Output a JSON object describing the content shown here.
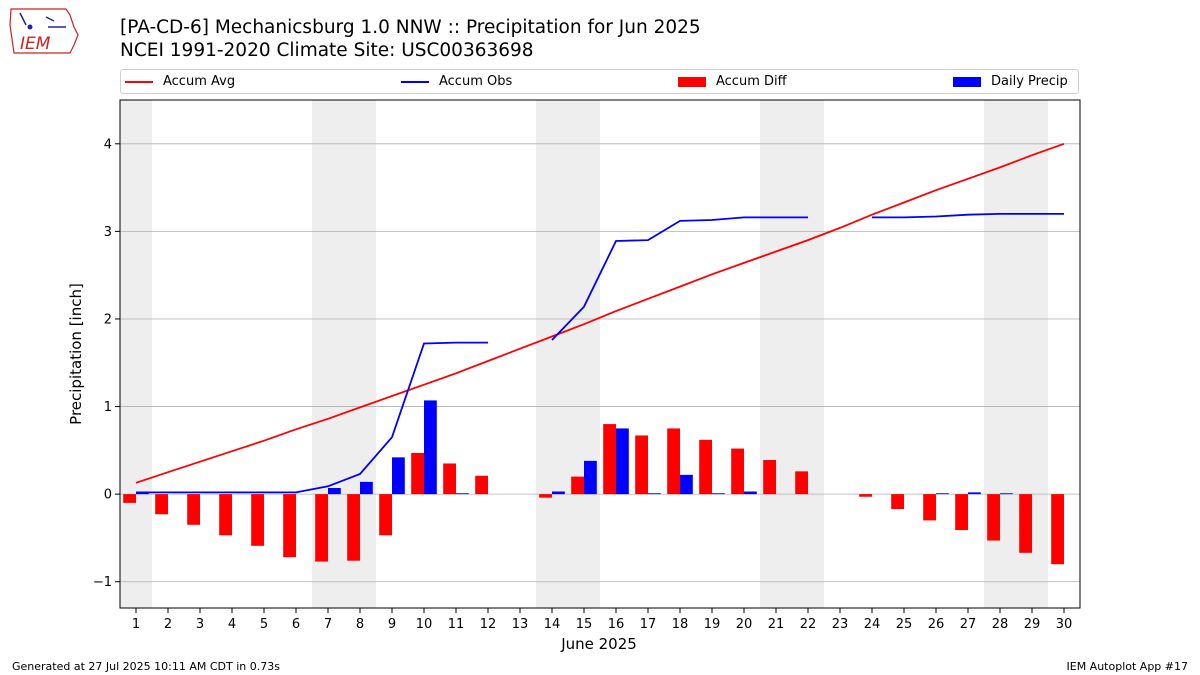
{
  "header": {
    "title_line1": "[PA-CD-6] Mechanicsburg 1.0 NNW :: Precipitation for Jun 2025",
    "title_line2": "NCEI 1991-2020 Climate Site: USC00363698"
  },
  "logo": {
    "text": "IEM",
    "color": "#cc2222"
  },
  "footer": {
    "generated": "Generated at 27 Jul 2025 10:11 AM CDT in 0.73s",
    "app": "IEM Autoplot App #17"
  },
  "legend": {
    "avg_label": "Accum Avg",
    "obs_label": "Accum Obs",
    "diff_label": "Accum Diff",
    "daily_label": "Daily Precip"
  },
  "chart_data": {
    "type": "bar",
    "xlabel": "June 2025",
    "ylabel": "Precipitation [inch]",
    "xlim": [
      0.5,
      30.5
    ],
    "ylim": [
      -1.3,
      4.5
    ],
    "yticks": [
      -1,
      0,
      1,
      2,
      3,
      4
    ],
    "ytick_labels": [
      "−1",
      "0",
      "1",
      "2",
      "3",
      "4"
    ],
    "grid": "horizontal",
    "legend_position": "top",
    "weekend_shading": [
      [
        0.5,
        1.5
      ],
      [
        6.5,
        8.5
      ],
      [
        13.5,
        15.5
      ],
      [
        20.5,
        22.5
      ],
      [
        27.5,
        29.5
      ]
    ],
    "days": [
      1,
      2,
      3,
      4,
      5,
      6,
      7,
      8,
      9,
      10,
      11,
      12,
      13,
      14,
      15,
      16,
      17,
      18,
      19,
      20,
      21,
      22,
      23,
      24,
      25,
      26,
      27,
      28,
      29,
      30
    ],
    "colors": {
      "avg": "#ff0000",
      "obs": "#0000ff",
      "diff": "#ff0000",
      "daily": "#0000ff",
      "shade": "#eeeeee",
      "grid": "#b0b0b0"
    },
    "series": [
      {
        "name": "Accum Avg",
        "kind": "line",
        "values": [
          0.13,
          0.25,
          0.37,
          0.49,
          0.61,
          0.74,
          0.86,
          0.99,
          1.12,
          1.25,
          1.38,
          1.52,
          1.66,
          1.8,
          1.94,
          2.09,
          2.23,
          2.37,
          2.51,
          2.64,
          2.77,
          2.9,
          3.04,
          3.19,
          3.33,
          3.47,
          3.6,
          3.73,
          3.87,
          4.0
        ]
      },
      {
        "name": "Accum Obs",
        "kind": "line",
        "values": [
          0.02,
          0.02,
          0.02,
          0.02,
          0.02,
          0.02,
          0.09,
          0.23,
          0.65,
          1.72,
          1.73,
          1.73,
          null,
          1.76,
          2.14,
          2.89,
          2.9,
          3.12,
          3.13,
          3.16,
          3.16,
          3.16,
          null,
          3.16,
          3.16,
          3.17,
          3.19,
          3.2,
          3.2,
          3.2
        ]
      },
      {
        "name": "Accum Diff",
        "kind": "bar",
        "values": [
          -0.1,
          -0.23,
          -0.35,
          -0.47,
          -0.59,
          -0.72,
          -0.77,
          -0.76,
          -0.47,
          0.47,
          0.35,
          0.21,
          null,
          -0.04,
          0.2,
          0.8,
          0.67,
          0.75,
          0.62,
          0.52,
          0.39,
          0.26,
          null,
          -0.03,
          -0.17,
          -0.3,
          -0.41,
          -0.53,
          -0.67,
          -0.8
        ]
      },
      {
        "name": "Daily Precip",
        "kind": "bar",
        "values": [
          0.02,
          0,
          0,
          0,
          0,
          0,
          0.07,
          0.14,
          0.42,
          1.07,
          0.01,
          0,
          null,
          0.03,
          0.38,
          0.75,
          0.01,
          0.22,
          0.01,
          0.03,
          0,
          0,
          null,
          0,
          0,
          0.01,
          0.02,
          0.01,
          0,
          0
        ]
      }
    ]
  }
}
